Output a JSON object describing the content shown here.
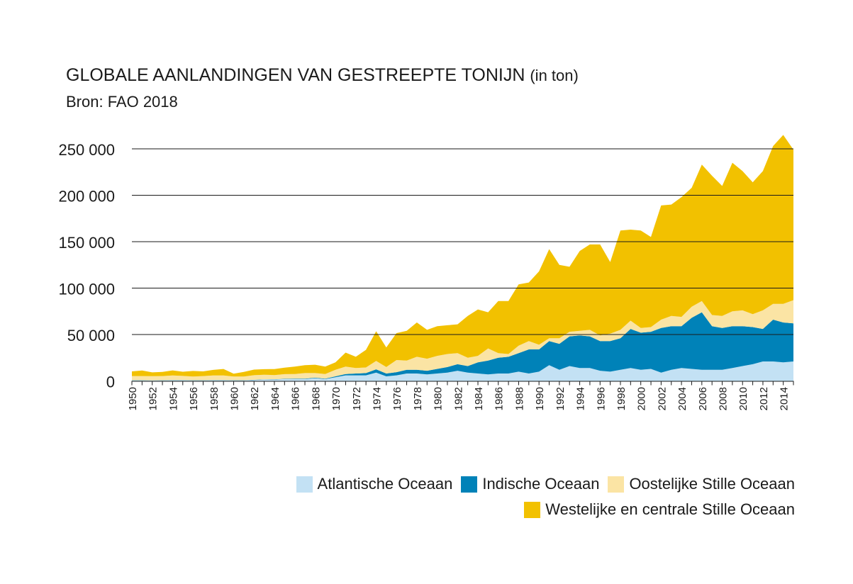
{
  "chart_data": {
    "type": "area",
    "stacked": true,
    "title": "GLOBALE AANLANDINGEN VAN GESTREEPTE TONIJN",
    "title_unit": "(in ton)",
    "subtitle": "Bron: FAO 2018",
    "xlabel": "",
    "ylabel": "",
    "ylim": [
      0,
      250000
    ],
    "grid": true,
    "legend_position": "bottom-right",
    "y_ticks": [
      0,
      50000,
      100000,
      150000,
      200000,
      250000
    ],
    "y_tick_labels": [
      "0",
      "50 000",
      "100 000",
      "150 000",
      "200 000",
      "250 000"
    ],
    "x_tick_labels": [
      "1950",
      "1952",
      "1954",
      "1956",
      "1958",
      "1960",
      "1962",
      "1964",
      "1966",
      "1968",
      "1970",
      "1972",
      "1974",
      "1976",
      "1978",
      "1980",
      "1982",
      "1984",
      "1986",
      "1988",
      "1990",
      "1992",
      "1994",
      "1996",
      "1998",
      "2000",
      "2002",
      "2004",
      "2006",
      "2008",
      "2010",
      "2012",
      "2014"
    ],
    "x": [
      1950,
      1951,
      1952,
      1953,
      1954,
      1955,
      1956,
      1957,
      1958,
      1959,
      1960,
      1961,
      1962,
      1963,
      1964,
      1965,
      1966,
      1967,
      1968,
      1969,
      1970,
      1971,
      1972,
      1973,
      1974,
      1975,
      1976,
      1977,
      1978,
      1979,
      1980,
      1981,
      1982,
      1983,
      1984,
      1985,
      1986,
      1987,
      1988,
      1989,
      1990,
      1991,
      1992,
      1993,
      1994,
      1995,
      1996,
      1997,
      1998,
      1999,
      2000,
      2001,
      2002,
      2003,
      2004,
      2005,
      2006,
      2007,
      2008,
      2009,
      2010,
      2011,
      2012,
      2013,
      2014,
      2015
    ],
    "series": [
      {
        "name": "Atlantische Oceaan",
        "color": "#c3e1f4",
        "values": [
          600,
          600,
          500,
          600,
          700,
          700,
          600,
          600,
          700,
          700,
          600,
          600,
          1000,
          1500,
          1500,
          2000,
          2000,
          2000,
          3000,
          2000,
          4000,
          6000,
          6000,
          6000,
          9000,
          5000,
          6000,
          8000,
          8000,
          7000,
          8000,
          9000,
          11000,
          9000,
          8000,
          7000,
          8000,
          8000,
          10000,
          8000,
          10000,
          17000,
          12000,
          16000,
          14000,
          14000,
          11000,
          10000,
          12000,
          14000,
          12000,
          13000,
          9000,
          12000,
          14000,
          13000,
          12000,
          12000,
          12000,
          14000,
          16000,
          18000,
          21000,
          21000,
          20000,
          21000
        ]
      },
      {
        "name": "Indische Oceaan",
        "color": "#0082b8",
        "values": [
          200,
          200,
          200,
          200,
          200,
          200,
          200,
          200,
          200,
          200,
          200,
          200,
          200,
          200,
          300,
          300,
          500,
          500,
          500,
          500,
          1000,
          1500,
          2000,
          2500,
          3500,
          3000,
          3500,
          4000,
          4000,
          4000,
          5000,
          6000,
          7000,
          7000,
          12000,
          15000,
          17000,
          18000,
          20000,
          26000,
          24000,
          26000,
          28000,
          32000,
          35000,
          34000,
          32000,
          33000,
          34000,
          42000,
          40000,
          40000,
          48000,
          47000,
          45000,
          55000,
          62000,
          47000,
          45000,
          45000,
          43000,
          40000,
          35000,
          45000,
          43000,
          41000
        ]
      },
      {
        "name": "Oostelijke Stille Oceaan",
        "color": "#fbe4a4",
        "values": [
          4500,
          4500,
          4500,
          4500,
          5000,
          4500,
          4000,
          4500,
          5000,
          5000,
          4000,
          4000,
          5000,
          5000,
          4500,
          5000,
          5000,
          6000,
          5000,
          5000,
          7000,
          8000,
          6000,
          6000,
          9000,
          7000,
          13000,
          10000,
          14000,
          13000,
          14000,
          14000,
          12000,
          9000,
          7000,
          13000,
          5000,
          3000,
          8000,
          9000,
          5000,
          3000,
          6000,
          5000,
          5000,
          7000,
          6000,
          8000,
          9000,
          9000,
          5000,
          5000,
          9000,
          11000,
          10000,
          12000,
          12000,
          12000,
          13000,
          16000,
          17000,
          14000,
          20000,
          17000,
          20000,
          25000
        ]
      },
      {
        "name": "Westelijke en centrale Stille Oceaan",
        "color": "#f2c100",
        "values": [
          5000,
          6000,
          4000,
          4500,
          5500,
          4500,
          6000,
          5000,
          6000,
          7000,
          3000,
          5000,
          6000,
          6000,
          6500,
          7000,
          8000,
          8500,
          9000,
          8000,
          8000,
          15000,
          12000,
          19000,
          32000,
          21000,
          29000,
          32000,
          37000,
          31000,
          32000,
          31000,
          31000,
          45000,
          50000,
          39000,
          56000,
          57000,
          66000,
          63000,
          79000,
          96000,
          79000,
          70000,
          86000,
          92000,
          98000,
          77000,
          107000,
          98000,
          105000,
          97000,
          123000,
          120000,
          129000,
          128000,
          147000,
          150000,
          140000,
          160000,
          150000,
          142000,
          150000,
          170000,
          182000,
          162000
        ]
      }
    ]
  }
}
